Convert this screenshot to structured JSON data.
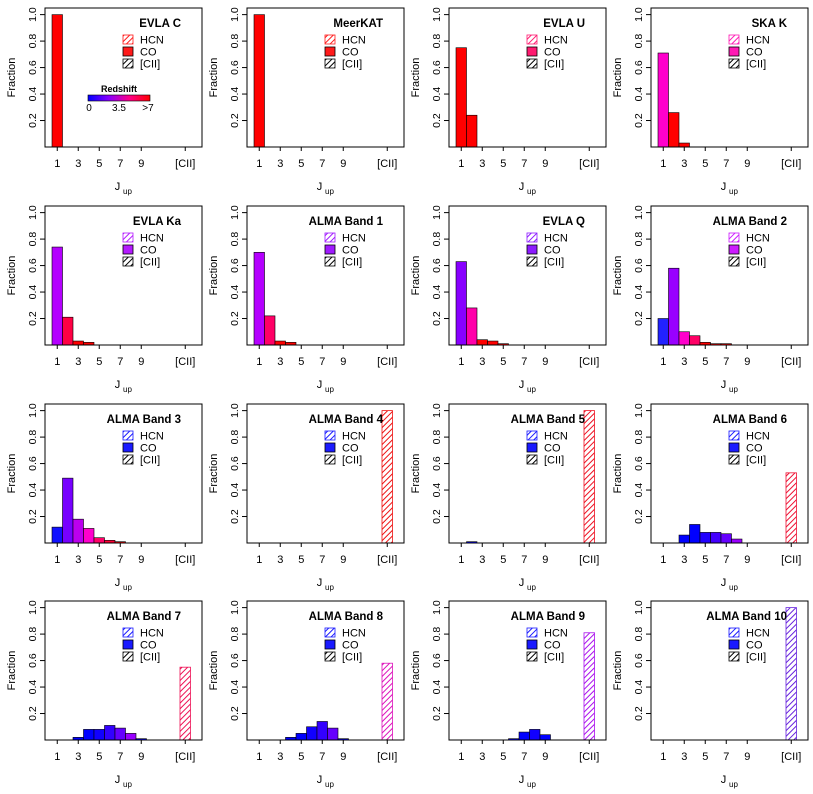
{
  "shared": {
    "ylabel": "Fraction",
    "xlabel_main": "J",
    "xlabel_sub": "up",
    "ylim": [
      0,
      1.05
    ],
    "y_ticks": [
      "0.2",
      "0.4",
      "0.6",
      "0.8",
      "1.0"
    ],
    "x_ticks": [
      "1",
      "3",
      "5",
      "7",
      "9",
      "[CII]"
    ],
    "legend_labels": [
      "HCN",
      "CO",
      "[CII]"
    ]
  },
  "colorbar": {
    "title": "Redshift",
    "labels": [
      "0",
      "3.5",
      ">7"
    ],
    "colors": [
      "#0000ff",
      "#8800ff",
      "#ff0088",
      "#ff0000"
    ]
  },
  "chart_data": [
    {
      "type": "bar",
      "title": "EVLA C",
      "legend_color": "#ff1a1a",
      "co_values": [
        1.0,
        0,
        0,
        0,
        0,
        0,
        0,
        0,
        0,
        0
      ],
      "co_colors": [
        "#ff0000",
        "#ff0000",
        "#ff0000",
        "#ff0000",
        "#ff0000",
        "#ff0000",
        "#ff0000",
        "#ff0000",
        "#ff0000",
        "#ff0000"
      ],
      "cii_value": 0,
      "cii_color": "#ff0000"
    },
    {
      "type": "bar",
      "title": "MeerKAT",
      "legend_color": "#ff1a1a",
      "co_values": [
        1.0,
        0,
        0,
        0,
        0,
        0,
        0,
        0,
        0,
        0
      ],
      "co_colors": [
        "#ff0000",
        "#ff0000",
        "#ff0000",
        "#ff0000",
        "#ff0000",
        "#ff0000",
        "#ff0000",
        "#ff0000",
        "#ff0000",
        "#ff0000"
      ],
      "cii_value": 0,
      "cii_color": "#ff0000"
    },
    {
      "type": "bar",
      "title": "EVLA U",
      "legend_color": "#ff1a70",
      "co_values": [
        0.75,
        0.24,
        0,
        0,
        0,
        0,
        0,
        0,
        0,
        0
      ],
      "co_colors": [
        "#ff0000",
        "#ff0000",
        "#ff0000",
        "#ff0000",
        "#ff0000",
        "#ff0000",
        "#ff0000",
        "#ff0000",
        "#ff0000",
        "#ff0000"
      ],
      "cii_value": 0,
      "cii_color": "#ff0000"
    },
    {
      "type": "bar",
      "title": "SKA K",
      "legend_color": "#ff1ab4",
      "co_values": [
        0.71,
        0.26,
        0.03,
        0,
        0,
        0,
        0,
        0,
        0,
        0
      ],
      "co_colors": [
        "#ff00cc",
        "#ff0000",
        "#ff0000",
        "#ff0000",
        "#ff0000",
        "#ff0000",
        "#ff0000",
        "#ff0000",
        "#ff0000",
        "#ff0000"
      ],
      "cii_value": 0,
      "cii_color": "#ff0000"
    },
    {
      "type": "bar",
      "title": "EVLA Ka",
      "legend_color": "#b41aff",
      "co_values": [
        0.74,
        0.21,
        0.03,
        0.02,
        0,
        0,
        0,
        0,
        0,
        0
      ],
      "co_colors": [
        "#b400ff",
        "#ff0044",
        "#ff0000",
        "#ff0000",
        "#ff0000",
        "#ff0000",
        "#ff0000",
        "#ff0000",
        "#ff0000",
        "#ff0000"
      ],
      "cii_value": 0,
      "cii_color": "#ff0000"
    },
    {
      "type": "bar",
      "title": "ALMA Band 1",
      "legend_color": "#a01aff",
      "co_values": [
        0.7,
        0.22,
        0.03,
        0.02,
        0,
        0,
        0,
        0,
        0,
        0
      ],
      "co_colors": [
        "#b400ff",
        "#ff0066",
        "#ff0000",
        "#ff0000",
        "#ff0000",
        "#ff0000",
        "#ff0000",
        "#ff0000",
        "#ff0000",
        "#ff0000"
      ],
      "cii_value": 0,
      "cii_color": "#ff0000"
    },
    {
      "type": "bar",
      "title": "EVLA Q",
      "legend_color": "#8c1aff",
      "co_values": [
        0.63,
        0.28,
        0.04,
        0.03,
        0.01,
        0,
        0,
        0,
        0,
        0
      ],
      "co_colors": [
        "#8800ff",
        "#ff00aa",
        "#ff0000",
        "#ff0000",
        "#ff0000",
        "#ff0000",
        "#ff0000",
        "#ff0000",
        "#ff0000",
        "#ff0000"
      ],
      "cii_value": 0,
      "cii_color": "#ff0000"
    },
    {
      "type": "bar",
      "title": "ALMA Band 2",
      "legend_color": "#cc1aff",
      "co_values": [
        0.2,
        0.58,
        0.1,
        0.07,
        0.02,
        0.01,
        0.01,
        0,
        0,
        0
      ],
      "co_colors": [
        "#2222ff",
        "#9900ff",
        "#ff00cc",
        "#ff0066",
        "#ff0000",
        "#ff0000",
        "#ff0000",
        "#ff0000",
        "#ff0000",
        "#ff0000"
      ],
      "cii_value": 0,
      "cii_color": "#ff0000"
    },
    {
      "type": "bar",
      "title": "ALMA Band 3",
      "legend_color": "#1a1aff",
      "co_values": [
        0.12,
        0.49,
        0.18,
        0.11,
        0.04,
        0.02,
        0.01,
        0,
        0,
        0
      ],
      "co_colors": [
        "#1111ff",
        "#7700ff",
        "#bb00ee",
        "#ff00cc",
        "#ff0066",
        "#ff0033",
        "#ff0000",
        "#ff0000",
        "#ff0000",
        "#ff0000"
      ],
      "cii_value": 0,
      "cii_color": "#ff0000"
    },
    {
      "type": "bar",
      "title": "ALMA Band 4",
      "legend_color": "#1a1aff",
      "co_values": [
        0,
        0,
        0,
        0,
        0,
        0,
        0,
        0,
        0,
        0
      ],
      "co_colors": [
        "#0000ff",
        "#0000ff",
        "#0000ff",
        "#0000ff",
        "#0000ff",
        "#0000ff",
        "#0000ff",
        "#0000ff",
        "#0000ff",
        "#0000ff"
      ],
      "cii_value": 1.0,
      "cii_color": "#ee1111"
    },
    {
      "type": "bar",
      "title": "ALMA Band 5",
      "legend_color": "#1a1aff",
      "co_values": [
        0,
        0.01,
        0,
        0,
        0,
        0,
        0,
        0,
        0,
        0
      ],
      "co_colors": [
        "#0000ff",
        "#0000ff",
        "#0000ff",
        "#0000ff",
        "#0000ff",
        "#0000ff",
        "#0000ff",
        "#0000ff",
        "#0000ff",
        "#0000ff"
      ],
      "cii_value": 1.0,
      "cii_color": "#ee1122"
    },
    {
      "type": "bar",
      "title": "ALMA Band 6",
      "legend_color": "#1a1aff",
      "co_values": [
        0,
        0,
        0.06,
        0.14,
        0.08,
        0.08,
        0.07,
        0.03,
        0,
        0
      ],
      "co_colors": [
        "#0000ff",
        "#0000ff",
        "#0000ff",
        "#0000ff",
        "#2200ff",
        "#4400ff",
        "#6600ff",
        "#9900ff",
        "#0000ff",
        "#0000ff"
      ],
      "cii_value": 0.53,
      "cii_color": "#ee1133"
    },
    {
      "type": "bar",
      "title": "ALMA Band 7",
      "legend_color": "#1a1aff",
      "co_values": [
        0,
        0,
        0.02,
        0.08,
        0.08,
        0.11,
        0.09,
        0.05,
        0.01,
        0
      ],
      "co_colors": [
        "#0000ff",
        "#0000ff",
        "#0000ff",
        "#0000ff",
        "#1100ff",
        "#3300ff",
        "#6600ff",
        "#9900ff",
        "#0000ff",
        "#0000ff"
      ],
      "cii_value": 0.55,
      "cii_color": "#ee1155"
    },
    {
      "type": "bar",
      "title": "ALMA Band 8",
      "legend_color": "#1a1aff",
      "co_values": [
        0,
        0,
        0,
        0.02,
        0.05,
        0.1,
        0.14,
        0.09,
        0.01,
        0
      ],
      "co_colors": [
        "#0000ff",
        "#0000ff",
        "#0000ff",
        "#0000ff",
        "#0000ff",
        "#1100ff",
        "#3300ff",
        "#6600ff",
        "#0000ff",
        "#0000ff"
      ],
      "cii_value": 0.58,
      "cii_color": "#dd11bb"
    },
    {
      "type": "bar",
      "title": "ALMA Band 9",
      "legend_color": "#1a1aff",
      "co_values": [
        0,
        0,
        0,
        0,
        0,
        0.01,
        0.06,
        0.08,
        0.04,
        0
      ],
      "co_colors": [
        "#0000ff",
        "#0000ff",
        "#0000ff",
        "#0000ff",
        "#0000ff",
        "#0000ff",
        "#0000ff",
        "#1100ff",
        "#0000ff",
        "#0000ff"
      ],
      "cii_value": 0.81,
      "cii_color": "#aa11ee"
    },
    {
      "type": "bar",
      "title": "ALMA Band 10",
      "legend_color": "#1a1aff",
      "co_values": [
        0,
        0,
        0,
        0,
        0,
        0,
        0,
        0,
        0,
        0
      ],
      "co_colors": [
        "#0000ff",
        "#0000ff",
        "#0000ff",
        "#0000ff",
        "#0000ff",
        "#0000ff",
        "#0000ff",
        "#0000ff",
        "#0000ff",
        "#0000ff"
      ],
      "cii_value": 1.0,
      "cii_color": "#6622dd"
    }
  ]
}
